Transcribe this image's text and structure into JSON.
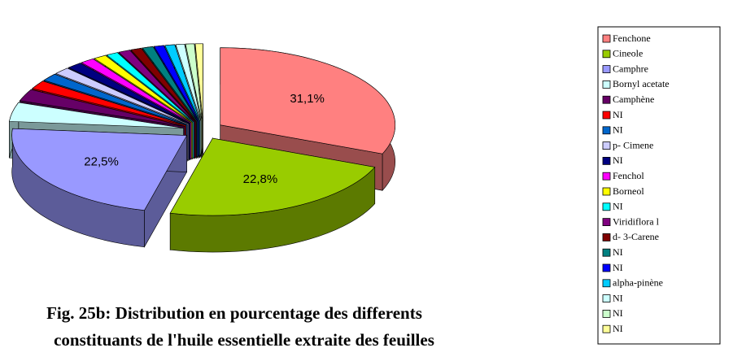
{
  "chart_data": {
    "type": "pie3d",
    "categories": [
      "Fenchone",
      "Cineole",
      "Camphre",
      "Bornyl acetate",
      "Camphène",
      "NI",
      "NI",
      "p- Cimene",
      "NI",
      "Fenchol",
      "Borneol",
      "NI",
      "Viridiflora l",
      "d- 3-Carene",
      "NI",
      "NI",
      "alpha-pinène",
      "NI",
      "NI",
      "NI"
    ],
    "values": [
      31.1,
      22.8,
      22.5,
      4.0,
      2.5,
      1.8,
      1.6,
      1.5,
      1.4,
      1.3,
      1.2,
      1.1,
      1.1,
      1.0,
      1.0,
      0.9,
      0.9,
      0.8,
      0.8,
      0.7
    ],
    "value_labels": [
      "31,1%",
      "22,8%",
      "22,5%",
      null,
      null,
      null,
      null,
      null,
      null,
      null,
      null,
      null,
      null,
      null,
      null,
      null,
      null,
      null,
      null,
      null
    ],
    "colors": [
      "#ff8080",
      "#99cc00",
      "#9999ff",
      "#ccffff",
      "#660066",
      "#ff0000",
      "#0066cc",
      "#ccccff",
      "#000080",
      "#ff00ff",
      "#ffff00",
      "#00ffff",
      "#800080",
      "#800000",
      "#008080",
      "#0000ff",
      "#00ccff",
      "#ccffff",
      "#ccffcc",
      "#ffff99"
    ],
    "caption": [
      "Fig. 25b: Distribution en pourcentage des differents",
      "constituants de l'huile essentielle extraite des feuilles"
    ],
    "legend": "right"
  }
}
